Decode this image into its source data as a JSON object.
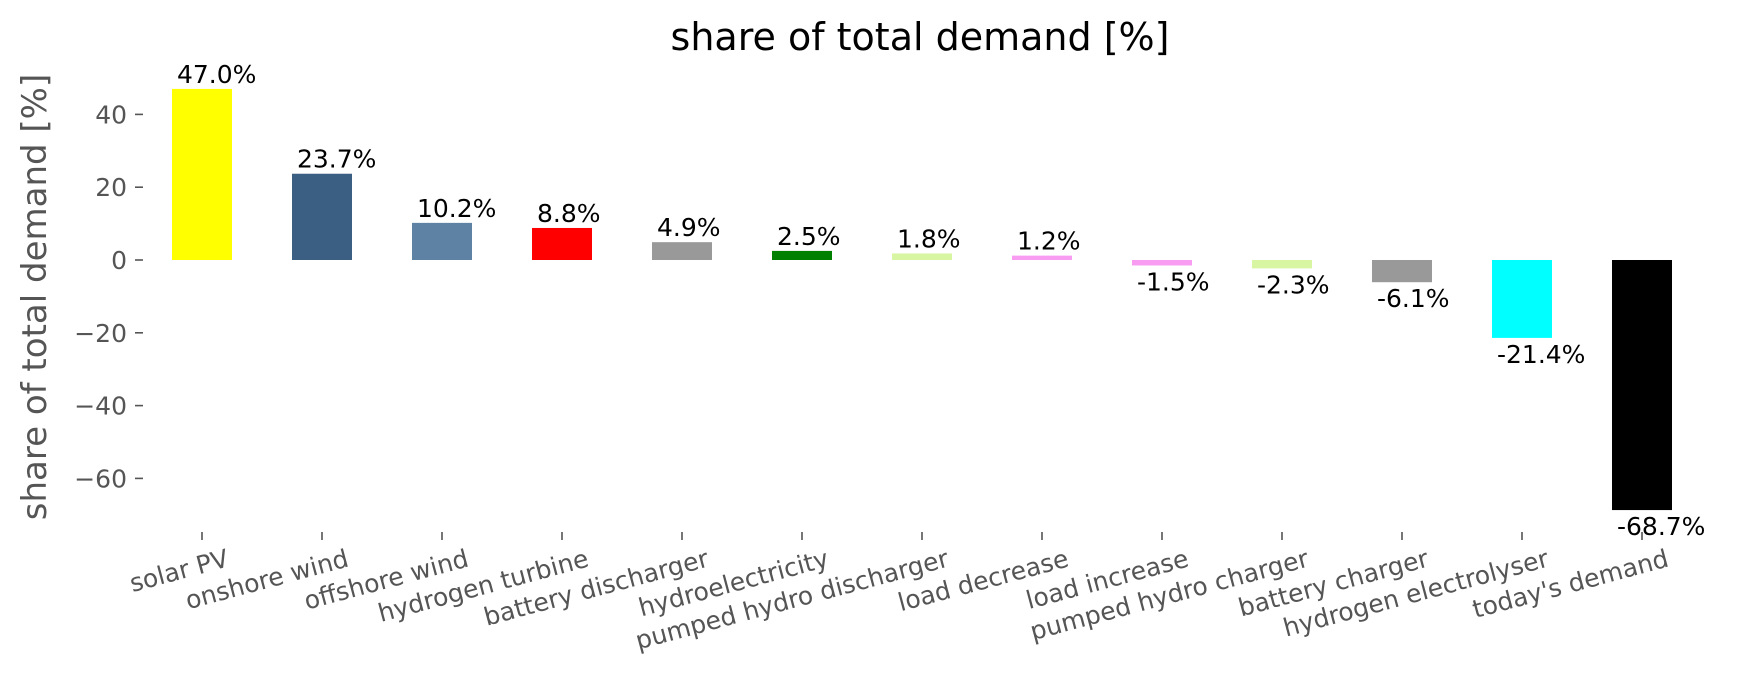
{
  "chart_data": {
    "type": "bar",
    "title": "share of total demand [%]",
    "ylabel": "share of total demand [%]",
    "xlabel": "",
    "ylim": [
      -76,
      50
    ],
    "yticks": [
      40,
      20,
      0,
      -20,
      -40,
      -60
    ],
    "ytick_labels": [
      "40",
      "20",
      "0",
      "−20",
      "−40",
      "−60"
    ],
    "grid": false,
    "legend": "none",
    "categories": [
      "solar PV",
      "onshore wind",
      "offshore wind",
      "hydrogen turbine",
      "battery discharger",
      "hydroelectricity",
      "pumped hydro discharger",
      "load decrease",
      "load increase",
      "pumped hydro charger",
      "battery charger",
      "hydrogen electrolyser",
      "today's demand"
    ],
    "values": [
      47.0,
      23.7,
      10.2,
      8.8,
      4.9,
      2.5,
      1.8,
      1.2,
      -1.5,
      -2.3,
      -6.1,
      -21.4,
      -68.7
    ],
    "value_labels": [
      "47.0%",
      "23.7%",
      "10.2%",
      "8.8%",
      "4.9%",
      "2.5%",
      "1.8%",
      "1.2%",
      "-1.5%",
      "-2.3%",
      "-6.1%",
      "-21.4%",
      "-68.7%"
    ],
    "colors": [
      "#ffff00",
      "#3a5f82",
      "#5d82a3",
      "#ff0000",
      "#999999",
      "#008000",
      "#d8f5a2",
      "#f79cf0",
      "#f79cf0",
      "#d8f5a2",
      "#999999",
      "#00ffff",
      "#000000"
    ]
  }
}
